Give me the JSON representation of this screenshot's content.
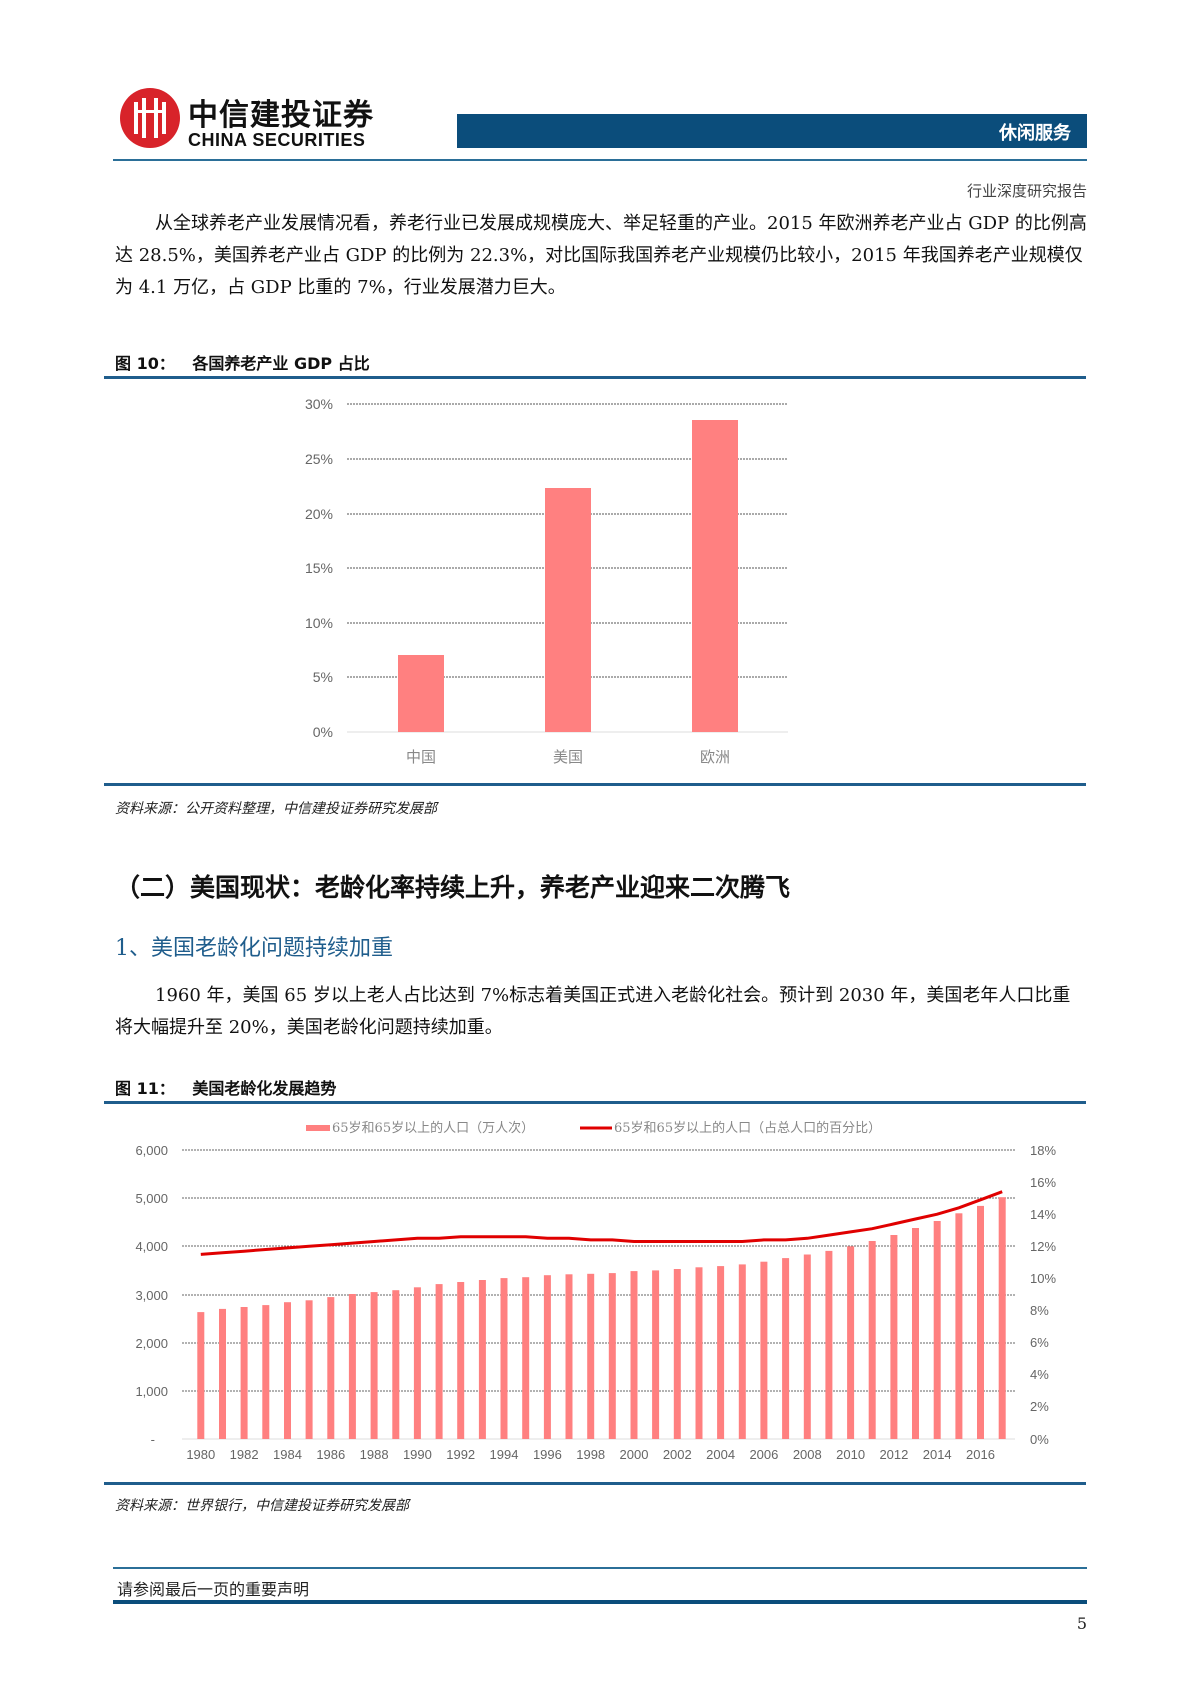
{
  "header": {
    "logo_cn": "中信建投证券",
    "logo_en": "CHINA SECURITIES",
    "sector": "休闲服务",
    "report_type": "行业深度研究报告",
    "brand_color": "#0b4d7b",
    "logo_color": "#d8232a"
  },
  "intro_paragraph": "从全球养老产业发展情况看，养老行业已发展成规模庞大、举足轻重的产业。2015 年欧洲养老产业占 GDP 的比例高达 28.5%，美国养老产业占 GDP 的比例为 22.3%，对比国际我国养老产业规模仍比较小，2015 年我国养老产业规模仅为 4.1 万亿，占 GDP 比重的 7%，行业发展潜力巨大。",
  "figure10": {
    "label": "图 10：",
    "title": "各国养老产业 GDP 占比",
    "source": "资料来源：公开资料整理，中信建投证券研究发展部"
  },
  "section2_heading": "（二）美国现状：老龄化率持续上升，养老产业迎来二次腾飞",
  "subsection1_heading": "1、美国老龄化问题持续加重",
  "aging_paragraph": "1960 年，美国 65 岁以上老人占比达到 7%标志着美国正式进入老龄化社会。预计到 2030 年，美国老年人口比重将大幅提升至 20%，美国老龄化问题持续加重。",
  "figure11": {
    "label": "图 11：",
    "title": "美国老龄化发展趋势",
    "source": "资料来源：世界银行，中信建投证券研究发展部"
  },
  "footer": {
    "disclaimer": "请参阅最后一页的重要声明",
    "page_number": "5"
  },
  "chart_data": [
    {
      "type": "bar",
      "title": "各国养老产业 GDP 占比",
      "categories": [
        "中国",
        "美国",
        "欧洲"
      ],
      "values": [
        7.0,
        22.3,
        28.5
      ],
      "unit": "%",
      "xlabel": "",
      "ylabel": "",
      "ylim": [
        0,
        30
      ],
      "yticks": [
        "0%",
        "5%",
        "10%",
        "15%",
        "20%",
        "25%",
        "30%"
      ],
      "grid": true,
      "legend": null,
      "bar_color": "#ff8080"
    },
    {
      "type": "bar+line",
      "title": "美国老龄化发展趋势",
      "x": [
        1980,
        1981,
        1982,
        1983,
        1984,
        1985,
        1986,
        1987,
        1988,
        1989,
        1990,
        1991,
        1992,
        1993,
        1994,
        1995,
        1996,
        1997,
        1998,
        1999,
        2000,
        2001,
        2002,
        2003,
        2004,
        2005,
        2006,
        2007,
        2008,
        2009,
        2010,
        2011,
        2012,
        2013,
        2014,
        2015,
        2016,
        2017
      ],
      "xticks": [
        "1980",
        "1982",
        "1984",
        "1986",
        "1988",
        "1990",
        "1992",
        "1994",
        "1996",
        "1998",
        "2000",
        "2002",
        "2004",
        "2006",
        "2008",
        "2010",
        "2012",
        "2014",
        "2016"
      ],
      "series": [
        {
          "name": "65岁和65岁以上的人口（万人次）",
          "type": "bar",
          "axis": "left",
          "color": "#ff8080",
          "values": [
            2635,
            2700,
            2740,
            2780,
            2840,
            2880,
            2945,
            3010,
            3050,
            3090,
            3150,
            3215,
            3260,
            3300,
            3340,
            3360,
            3400,
            3420,
            3430,
            3445,
            3485,
            3500,
            3530,
            3565,
            3590,
            3625,
            3680,
            3755,
            3830,
            3905,
            4000,
            4110,
            4235,
            4380,
            4525,
            4685,
            4840,
            5020
          ]
        },
        {
          "name": "65岁和65岁以上的人口（占总人口的百分比）",
          "type": "line",
          "axis": "right",
          "color": "#e00000",
          "values": [
            11.5,
            11.6,
            11.7,
            11.8,
            11.9,
            12.0,
            12.1,
            12.2,
            12.3,
            12.4,
            12.5,
            12.5,
            12.6,
            12.6,
            12.6,
            12.6,
            12.5,
            12.5,
            12.4,
            12.4,
            12.3,
            12.3,
            12.3,
            12.3,
            12.3,
            12.3,
            12.4,
            12.4,
            12.5,
            12.7,
            12.9,
            13.1,
            13.4,
            13.7,
            14.0,
            14.4,
            14.9,
            15.4
          ]
        }
      ],
      "left_axis": {
        "ylim": [
          0,
          6000
        ],
        "ticks": [
          "-",
          "1,000",
          "2,000",
          "3,000",
          "4,000",
          "5,000",
          "6,000"
        ]
      },
      "right_axis": {
        "ylim": [
          0,
          18
        ],
        "ticks": [
          "0%",
          "2%",
          "4%",
          "6%",
          "8%",
          "10%",
          "12%",
          "14%",
          "16%",
          "18%"
        ]
      },
      "grid": true,
      "legend_position": "top"
    }
  ]
}
